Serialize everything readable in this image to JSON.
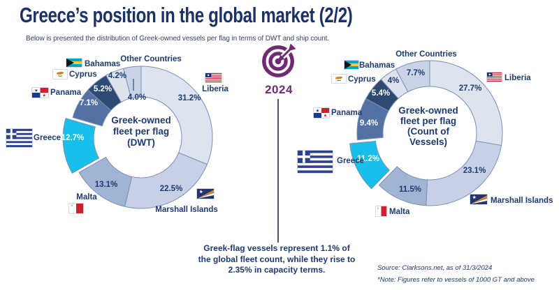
{
  "header": {
    "title": "Greece’s position in the global market (2/2)",
    "subtitle": "Below is presented the distribution of Greek-owned vessels per flag in terms of DWT and ship count."
  },
  "badge": {
    "year": "2024"
  },
  "callout": {
    "lines": [
      "Greek-flag vessels represent 1.1% of",
      "the global fleet count, while they rise to",
      "2.35% in capacity terms."
    ]
  },
  "footer": {
    "source": "Source: Clarksons.net, as of 31/3/2024",
    "note": "*Note: Figures refer to vessels of 1000 GT and above"
  },
  "colors": {
    "Liberia": "#dde4f0",
    "Marshall Islands": "#c6d1e5",
    "Malta": "#a2b4d4",
    "Greece": "#17bfea",
    "Panama": "#5371a3",
    "Cyprus": "#2f4a72",
    "Bahamas": "#dce2ee",
    "Other Countries": "#c9d3e6",
    "slice_outline": "#7b8fb4",
    "text_navy": "#1e3a70",
    "title_navy": "#1d3264",
    "accent_purple": "#6f2a72",
    "connector_line": "#44596e"
  },
  "chart_data": [
    {
      "type": "pie",
      "subtype": "donut",
      "title": "Greek-owned fleet per flag (DWT)",
      "center_lines": [
        "Greek-owned",
        "fleet per flag",
        "(DWT)"
      ],
      "value_unit": "percent_of_dwt",
      "legend_position": "around",
      "slices": [
        {
          "label": "Liberia",
          "value": 31.2,
          "display": "31.2%"
        },
        {
          "label": "Marshall Islands",
          "value": 22.5,
          "display": "22.5%"
        },
        {
          "label": "Malta",
          "value": 13.1,
          "display": "13.1%"
        },
        {
          "label": "Greece",
          "value": 12.7,
          "display": "12.7%",
          "exploded": true
        },
        {
          "label": "Panama",
          "value": 7.1,
          "display": "7.1%"
        },
        {
          "label": "Cyprus",
          "value": 5.2,
          "display": "5.2%"
        },
        {
          "label": "Bahamas",
          "value": 4.2,
          "display": "4.2%"
        },
        {
          "label": "Other Countries",
          "value": 4.0,
          "display": "4.0%"
        }
      ]
    },
    {
      "type": "pie",
      "subtype": "donut",
      "title": "Greek-owned fleet per flag (Count of Vessels)",
      "center_lines": [
        "Greek-owned",
        "fleet per flag",
        "(Count of",
        "Vessels)"
      ],
      "value_unit": "percent_of_vessel_count",
      "legend_position": "around",
      "slices": [
        {
          "label": "Liberia",
          "value": 27.7,
          "display": "27.7%"
        },
        {
          "label": "Marshall Islands",
          "value": 23.1,
          "display": "23.1%"
        },
        {
          "label": "Malta",
          "value": 11.5,
          "display": "11.5%"
        },
        {
          "label": "Greece",
          "value": 11.2,
          "display": "11.2%",
          "exploded": true
        },
        {
          "label": "Panama",
          "value": 9.4,
          "display": "9.4%"
        },
        {
          "label": "Cyprus",
          "value": 5.4,
          "display": "5.4%"
        },
        {
          "label": "Bahamas",
          "value": 4.0,
          "display": "4%"
        },
        {
          "label": "Other Countries",
          "value": 7.7,
          "display": "7.7%"
        }
      ]
    }
  ]
}
